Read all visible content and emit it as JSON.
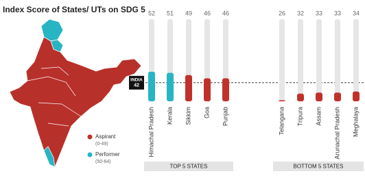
{
  "chart_data": {
    "type": "bar",
    "title": "Index Score of States/ UTs on SDG 5",
    "ylim": [
      25,
      100
    ],
    "reference": {
      "label": "INDIA",
      "value": 42
    },
    "groups": [
      {
        "name": "TOP 5 STATES",
        "categories": [
          "Himachal Pradesh",
          "Kerala",
          "Sikkim",
          "Goa",
          "Punjab"
        ],
        "values": [
          52,
          51,
          49,
          46,
          46
        ],
        "colors": [
          "#27b5c3",
          "#27b5c3",
          "#c1312b",
          "#c1312b",
          "#c1312b"
        ]
      },
      {
        "name": "BOTTOM 5 STATES",
        "categories": [
          "Telangana",
          "Tripura",
          "Assam",
          "Arunachal Pradesh",
          "Meghalaya"
        ],
        "values": [
          26,
          32,
          33,
          33,
          34
        ],
        "colors": [
          "#c1312b",
          "#c1312b",
          "#c1312b",
          "#c1312b",
          "#c1312b"
        ]
      }
    ],
    "legend": [
      {
        "label": "Aspirant",
        "range": "(0-49)",
        "color": "#c1312b"
      },
      {
        "label": "Performer",
        "range": "(50-64)",
        "color": "#27b5c3"
      }
    ]
  }
}
